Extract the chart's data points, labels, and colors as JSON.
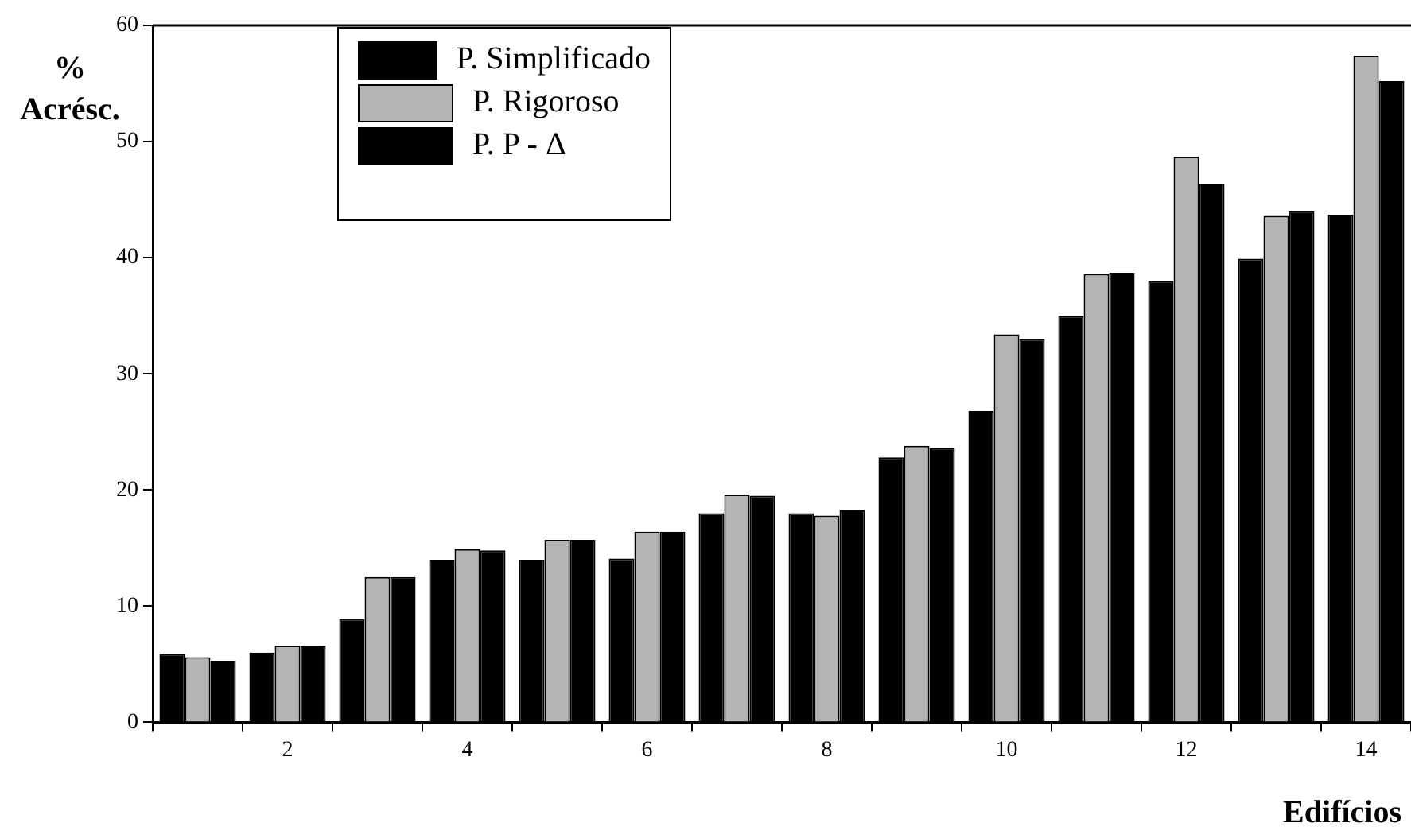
{
  "chart_data": {
    "type": "bar",
    "xlabel": "Edifícios",
    "ylabel": "% Acrésc.",
    "categories": [
      null,
      "2",
      null,
      "4",
      null,
      "6",
      null,
      "8",
      null,
      "10",
      null,
      "12",
      null,
      "14"
    ],
    "series": [
      {
        "name": "P. Simplificado",
        "color": "#000000",
        "values": [
          5.9,
          6.0,
          8.9,
          14.0,
          14.0,
          14.1,
          18.0,
          18.0,
          22.8,
          26.8,
          35.0,
          38.0,
          39.9,
          43.7
        ]
      },
      {
        "name": "P. Rigoroso",
        "color": "#b4b4b4",
        "values": [
          5.6,
          6.6,
          12.5,
          14.9,
          15.7,
          16.4,
          19.6,
          17.8,
          23.8,
          33.4,
          38.6,
          48.7,
          43.6,
          57.4
        ]
      },
      {
        "name": "P. P - Δ",
        "color": "#000000",
        "values": [
          5.3,
          6.6,
          12.5,
          14.8,
          15.7,
          16.4,
          19.5,
          18.3,
          23.6,
          33.0,
          38.7,
          46.3,
          44.0,
          55.2
        ]
      }
    ],
    "ylim": [
      0,
      60
    ],
    "yticks": [
      0,
      10,
      20,
      30,
      40,
      50,
      60
    ],
    "grid": false,
    "legend": "top left"
  }
}
